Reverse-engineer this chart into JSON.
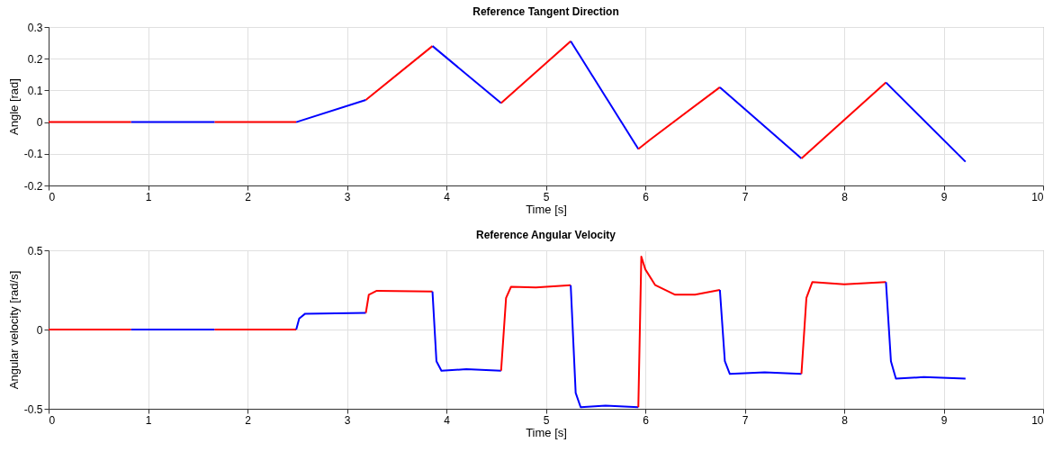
{
  "chart_data": [
    {
      "type": "line",
      "title": "Reference Tangent Direction",
      "xlabel": "Time [s]",
      "ylabel": "Angle [rad]",
      "xlim": [
        0,
        10
      ],
      "xticks": [
        0,
        1,
        2,
        3,
        4,
        5,
        6,
        7,
        8,
        9,
        10
      ],
      "ylim": [
        -0.2,
        0.3
      ],
      "yticks": [
        -0.2,
        -0.1,
        0,
        0.1,
        0.2,
        0.3
      ],
      "grid": true,
      "legend": false,
      "series": [
        {
          "color": "#ff0000",
          "x": [
            0,
            0.83
          ],
          "values": [
            0,
            0
          ]
        },
        {
          "color": "#0000ff",
          "x": [
            0.83,
            1.67
          ],
          "values": [
            0,
            0
          ]
        },
        {
          "color": "#ff0000",
          "x": [
            1.67,
            2.49
          ],
          "values": [
            0,
            0
          ]
        },
        {
          "color": "#0000ff",
          "x": [
            2.49,
            3.19
          ],
          "values": [
            0,
            0.07
          ]
        },
        {
          "color": "#ff0000",
          "x": [
            3.19,
            3.86
          ],
          "values": [
            0.07,
            0.24
          ]
        },
        {
          "color": "#0000ff",
          "x": [
            3.86,
            4.55
          ],
          "values": [
            0.24,
            0.06
          ]
        },
        {
          "color": "#ff0000",
          "x": [
            4.55,
            5.25
          ],
          "values": [
            0.06,
            0.255
          ]
        },
        {
          "color": "#0000ff",
          "x": [
            5.25,
            5.93
          ],
          "values": [
            0.255,
            -0.085
          ]
        },
        {
          "color": "#ff0000",
          "x": [
            5.93,
            6.05,
            6.75
          ],
          "values": [
            -0.085,
            -0.055,
            0.11
          ]
        },
        {
          "color": "#0000ff",
          "x": [
            6.75,
            7.57
          ],
          "values": [
            0.11,
            -0.115
          ]
        },
        {
          "color": "#ff0000",
          "x": [
            7.57,
            8.42
          ],
          "values": [
            -0.115,
            0.125
          ]
        },
        {
          "color": "#0000ff",
          "x": [
            8.42,
            9.22
          ],
          "values": [
            0.125,
            -0.125
          ]
        }
      ]
    },
    {
      "type": "line",
      "title": "Reference Angular Velocity",
      "xlabel": "Time [s]",
      "ylabel": "Angular velocity [rad/s]",
      "xlim": [
        0,
        10
      ],
      "xticks": [
        0,
        1,
        2,
        3,
        4,
        5,
        6,
        7,
        8,
        9,
        10
      ],
      "ylim": [
        -0.5,
        0.5
      ],
      "yticks": [
        -0.5,
        0,
        0.5
      ],
      "grid": true,
      "legend": false,
      "series": [
        {
          "color": "#ff0000",
          "x": [
            0,
            0.83
          ],
          "values": [
            0,
            0
          ]
        },
        {
          "color": "#0000ff",
          "x": [
            0.83,
            1.67
          ],
          "values": [
            0,
            0
          ]
        },
        {
          "color": "#ff0000",
          "x": [
            1.67,
            2.49
          ],
          "values": [
            0,
            0
          ]
        },
        {
          "color": "#0000ff",
          "x": [
            2.49,
            2.52,
            2.58,
            3.19
          ],
          "values": [
            0,
            0.07,
            0.1,
            0.105
          ]
        },
        {
          "color": "#ff0000",
          "x": [
            3.19,
            3.22,
            3.3,
            3.86
          ],
          "values": [
            0.105,
            0.22,
            0.245,
            0.24
          ]
        },
        {
          "color": "#0000ff",
          "x": [
            3.86,
            3.9,
            3.95,
            4.2,
            4.55
          ],
          "values": [
            0.24,
            -0.2,
            -0.26,
            -0.25,
            -0.26
          ]
        },
        {
          "color": "#ff0000",
          "x": [
            4.55,
            4.6,
            4.65,
            4.9,
            5.25
          ],
          "values": [
            -0.26,
            0.2,
            0.27,
            0.265,
            0.28
          ]
        },
        {
          "color": "#0000ff",
          "x": [
            5.25,
            5.3,
            5.35,
            5.6,
            5.93
          ],
          "values": [
            0.28,
            -0.4,
            -0.49,
            -0.48,
            -0.49
          ]
        },
        {
          "color": "#ff0000",
          "x": [
            5.93,
            5.96,
            6.0,
            6.1,
            6.3,
            6.5,
            6.75
          ],
          "values": [
            -0.49,
            0.46,
            0.38,
            0.28,
            0.22,
            0.22,
            0.25
          ]
        },
        {
          "color": "#0000ff",
          "x": [
            6.75,
            6.8,
            6.85,
            7.2,
            7.57
          ],
          "values": [
            0.25,
            -0.2,
            -0.28,
            -0.27,
            -0.28
          ]
        },
        {
          "color": "#ff0000",
          "x": [
            7.57,
            7.62,
            7.68,
            8.0,
            8.42
          ],
          "values": [
            -0.28,
            0.2,
            0.3,
            0.285,
            0.3
          ]
        },
        {
          "color": "#0000ff",
          "x": [
            8.42,
            8.47,
            8.52,
            8.8,
            9.22
          ],
          "values": [
            0.3,
            -0.2,
            -0.31,
            -0.3,
            -0.31
          ]
        }
      ]
    }
  ]
}
